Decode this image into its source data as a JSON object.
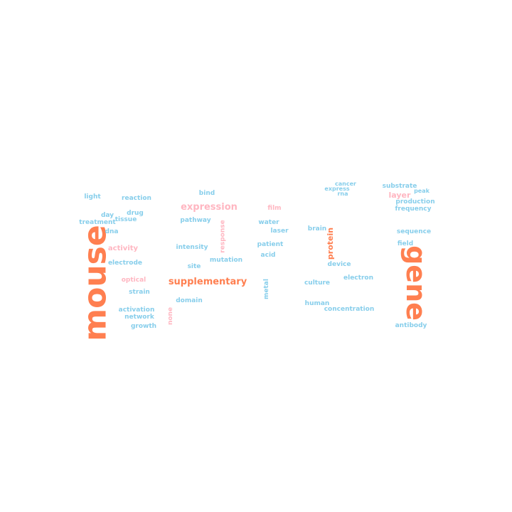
{
  "colors": {
    "blue": "#87CEEB",
    "orange": "#FF7F50",
    "pink": "#FFB6C1"
  },
  "words": [
    {
      "text": "mouse",
      "color": "orange",
      "rotate": -90
    },
    {
      "text": "gene",
      "color": "orange",
      "rotate": 90
    },
    {
      "text": "supplementary",
      "color": "orange",
      "rotate": 0
    },
    {
      "text": "protein",
      "color": "orange",
      "rotate": -90
    },
    {
      "text": "expression",
      "color": "pink",
      "rotate": 0
    },
    {
      "text": "layer",
      "color": "pink",
      "rotate": 0
    },
    {
      "text": "activity",
      "color": "pink",
      "rotate": 0
    },
    {
      "text": "film",
      "color": "pink",
      "rotate": 0
    },
    {
      "text": "optical",
      "color": "pink",
      "rotate": 0
    },
    {
      "text": "response",
      "color": "pink",
      "rotate": -90
    },
    {
      "text": "none",
      "color": "pink",
      "rotate": -90
    },
    {
      "text": "light",
      "color": "blue",
      "rotate": 0
    },
    {
      "text": "reaction",
      "color": "blue",
      "rotate": 0
    },
    {
      "text": "bind",
      "color": "blue",
      "rotate": 0
    },
    {
      "text": "cancer",
      "color": "blue",
      "rotate": 0
    },
    {
      "text": "express",
      "color": "blue",
      "rotate": 0
    },
    {
      "text": "rna",
      "color": "blue",
      "rotate": 0
    },
    {
      "text": "substrate",
      "color": "blue",
      "rotate": 0
    },
    {
      "text": "peak",
      "color": "blue",
      "rotate": 0
    },
    {
      "text": "production",
      "color": "blue",
      "rotate": 0
    },
    {
      "text": "frequency",
      "color": "blue",
      "rotate": 0
    },
    {
      "text": "day",
      "color": "blue",
      "rotate": 0
    },
    {
      "text": "drug",
      "color": "blue",
      "rotate": 0
    },
    {
      "text": "tissue",
      "color": "blue",
      "rotate": 0
    },
    {
      "text": "treatment",
      "color": "blue",
      "rotate": 0
    },
    {
      "text": "pathway",
      "color": "blue",
      "rotate": 0
    },
    {
      "text": "water",
      "color": "blue",
      "rotate": 0
    },
    {
      "text": "laser",
      "color": "blue",
      "rotate": 0
    },
    {
      "text": "brain",
      "color": "blue",
      "rotate": 0
    },
    {
      "text": "dna",
      "color": "blue",
      "rotate": 0
    },
    {
      "text": "sequence",
      "color": "blue",
      "rotate": 0
    },
    {
      "text": "field",
      "color": "blue",
      "rotate": 0
    },
    {
      "text": "intensity",
      "color": "blue",
      "rotate": 0
    },
    {
      "text": "patient",
      "color": "blue",
      "rotate": 0
    },
    {
      "text": "acid",
      "color": "blue",
      "rotate": 0
    },
    {
      "text": "mutation",
      "color": "blue",
      "rotate": 0
    },
    {
      "text": "electrode",
      "color": "blue",
      "rotate": 0
    },
    {
      "text": "site",
      "color": "blue",
      "rotate": 0
    },
    {
      "text": "device",
      "color": "blue",
      "rotate": 0
    },
    {
      "text": "electron",
      "color": "blue",
      "rotate": 0
    },
    {
      "text": "culture",
      "color": "blue",
      "rotate": 0
    },
    {
      "text": "strain",
      "color": "blue",
      "rotate": 0
    },
    {
      "text": "metal",
      "color": "blue",
      "rotate": -90
    },
    {
      "text": "domain",
      "color": "blue",
      "rotate": 0
    },
    {
      "text": "human",
      "color": "blue",
      "rotate": 0
    },
    {
      "text": "concentration",
      "color": "blue",
      "rotate": 0
    },
    {
      "text": "activation",
      "color": "blue",
      "rotate": 0
    },
    {
      "text": "network",
      "color": "blue",
      "rotate": 0
    },
    {
      "text": "growth",
      "color": "blue",
      "rotate": 0
    },
    {
      "text": "antibody",
      "color": "blue",
      "rotate": 0
    }
  ]
}
